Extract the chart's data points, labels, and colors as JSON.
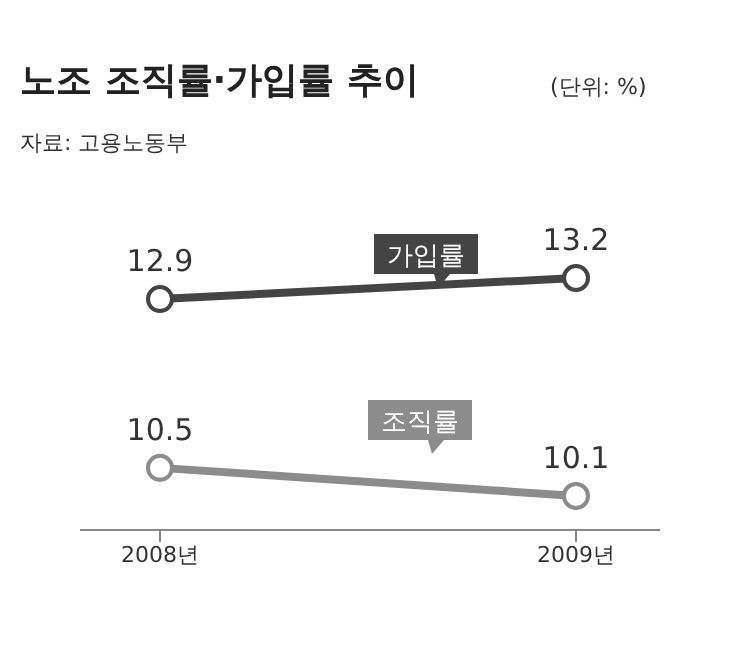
{
  "chart_data": {
    "type": "line",
    "title": "노조 조직률·가입률 추이",
    "annotations": [
      "(단위: %)",
      "자료: 고용노동부"
    ],
    "categories": [
      "2008년",
      "2009년"
    ],
    "series": [
      {
        "name": "가입률",
        "color": "#444444",
        "values": [
          12.9,
          13.2
        ]
      },
      {
        "name": "조직률",
        "color": "#8c8c8c",
        "values": [
          10.5,
          10.1
        ]
      }
    ],
    "data_labels": true,
    "legend": false,
    "grid": false,
    "marker": "circle",
    "line_style": "solid"
  }
}
